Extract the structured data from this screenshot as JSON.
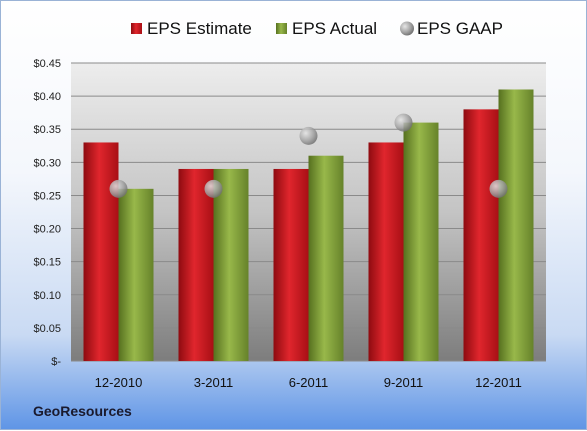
{
  "company": "GeoResources",
  "chart_data": {
    "type": "bar",
    "title": "",
    "xlabel": "",
    "ylabel": "",
    "categories": [
      "12-2010",
      "3-2011",
      "6-2011",
      "9-2011",
      "12-2011"
    ],
    "series": [
      {
        "name": "EPS Estimate",
        "kind": "bar",
        "color": "#c8141c",
        "values": [
          0.33,
          0.29,
          0.29,
          0.33,
          0.38
        ]
      },
      {
        "name": "EPS Actual",
        "kind": "bar",
        "color": "#7d9b35",
        "values": [
          0.26,
          0.29,
          0.31,
          0.36,
          0.41
        ]
      },
      {
        "name": "EPS GAAP",
        "kind": "marker",
        "color": "#a3a3a3",
        "values": [
          0.26,
          0.26,
          0.34,
          0.36,
          0.26
        ]
      }
    ],
    "ylim": [
      0,
      0.45
    ],
    "yticks": [
      0,
      0.05,
      0.1,
      0.15,
      0.2,
      0.25,
      0.3,
      0.35,
      0.4,
      0.45
    ],
    "ytick_labels": [
      "$-",
      "$0.05",
      "$0.10",
      "$0.15",
      "$0.20",
      "$0.25",
      "$0.30",
      "$0.35",
      "$0.40",
      "$0.45"
    ],
    "grid": true,
    "legend": "top"
  }
}
